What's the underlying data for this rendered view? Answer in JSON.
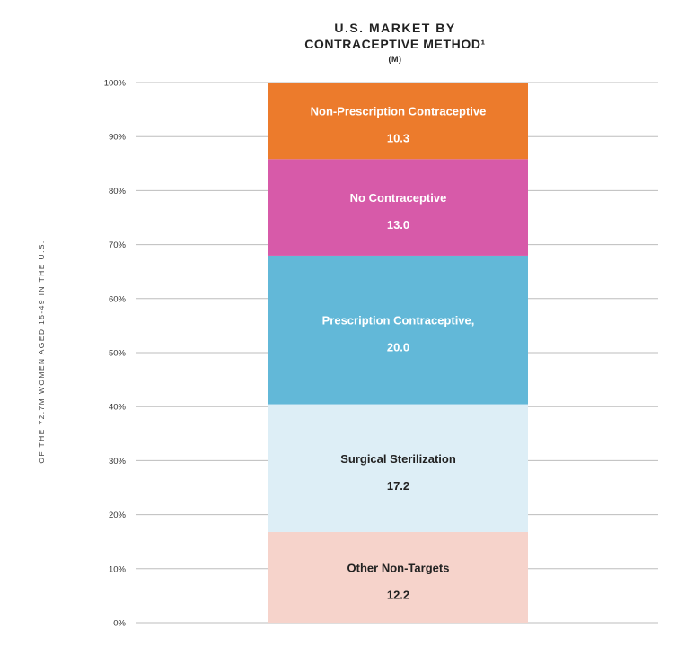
{
  "title": {
    "line1": "U.S. MARKET BY",
    "line2": "CONTRACEPTIVE METHOD¹",
    "line3": "(M)"
  },
  "chart_data": {
    "type": "bar",
    "stacked": true,
    "ylabel": "OF THE 72.7M WOMEN AGED 15-49 IN THE U.S.",
    "ylim": [
      0,
      100
    ],
    "yticks": [
      "0%",
      "10%",
      "20%",
      "30%",
      "40%",
      "50%",
      "60%",
      "70%",
      "80%",
      "90%",
      "100%"
    ],
    "grid": true,
    "series": [
      {
        "name": "Other Non-Targets",
        "value": 12.2,
        "label": "12.2",
        "color": "#f6d3cb",
        "text_color": "#222222"
      },
      {
        "name": "Surgical Sterilization",
        "value": 17.2,
        "label": "17.2",
        "color": "#ddeef6",
        "text_color": "#222222"
      },
      {
        "name": "Prescription Contraceptive,",
        "value": 20.0,
        "label": "20.0",
        "color": "#62b8d8",
        "text_color": "#ffffff"
      },
      {
        "name": "No Contraceptive",
        "value": 13.0,
        "label": "13.0",
        "color": "#d75aa9",
        "text_color": "#ffffff"
      },
      {
        "name": "Non-Prescription Contraceptive",
        "value": 10.3,
        "label": "10.3",
        "color": "#ec7b2c",
        "text_color": "#ffffff"
      }
    ]
  }
}
